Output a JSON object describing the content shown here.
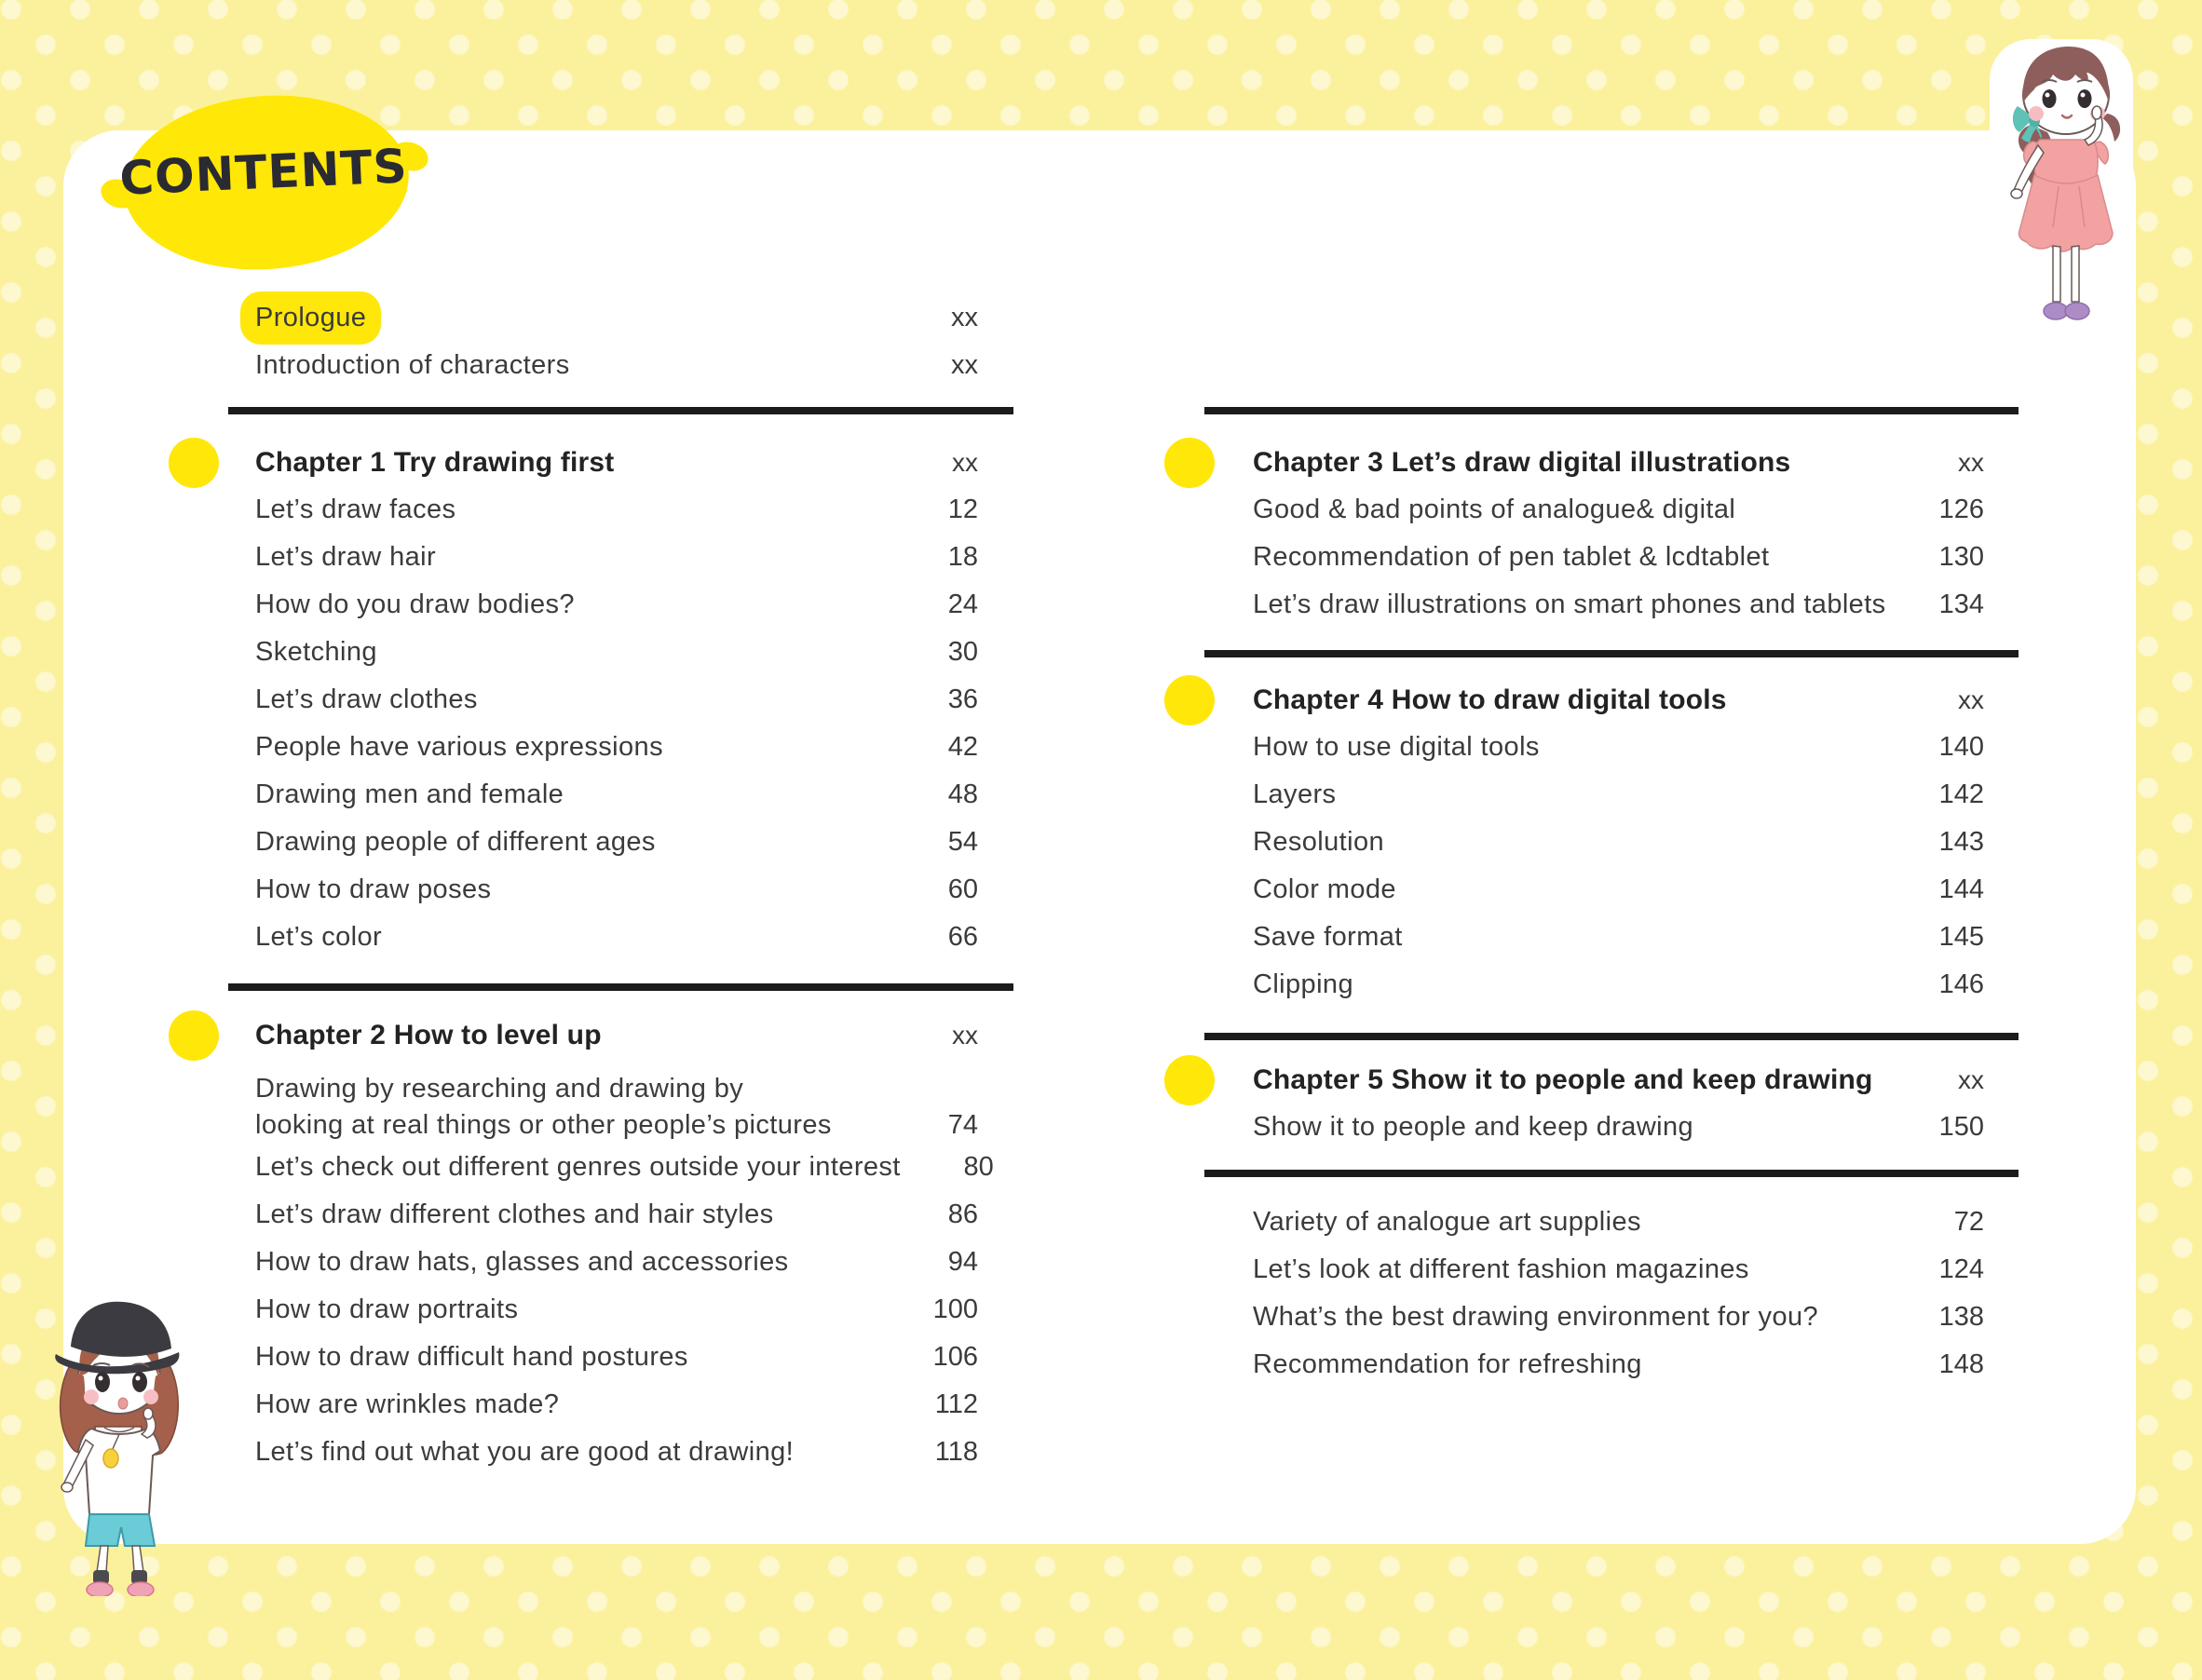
{
  "title": "CONTENTS",
  "colors": {
    "background_yellow": "#fbf19d",
    "dot_cream": "#fdf8d0",
    "accent_yellow": "#ffe70a",
    "text_dark": "#3b3b3b",
    "separator_dark": "#1b1b1b"
  },
  "front_matter": [
    {
      "label": "Prologue",
      "page": "xx",
      "highlight": true
    },
    {
      "label": "Introduction of characters",
      "page": "xx"
    }
  ],
  "left_column": {
    "sections": [
      {
        "heading": {
          "label": "Chapter 1 Try drawing first",
          "page": "xx"
        },
        "items": [
          {
            "label": "Let’s draw faces",
            "page": "12"
          },
          {
            "label": "Let’s draw hair",
            "page": "18"
          },
          {
            "label": "How do you draw bodies?",
            "page": "24"
          },
          {
            "label": "Sketching",
            "page": "30"
          },
          {
            "label": "Let’s draw clothes",
            "page": "36"
          },
          {
            "label": "People have various expressions",
            "page": "42"
          },
          {
            "label": "Drawing men and female",
            "page": "48"
          },
          {
            "label": "Drawing people of different ages",
            "page": "54"
          },
          {
            "label": "How to draw poses",
            "page": "60"
          },
          {
            "label": "Let’s color",
            "page": "66"
          }
        ]
      },
      {
        "heading": {
          "label": "Chapter 2 How to level up",
          "page": "xx"
        },
        "items": [
          {
            "label": "Drawing by researching and drawing by\nlooking at real things or other people’s pictures",
            "page": "74",
            "multiline": true
          },
          {
            "label": "Let’s check out different genres outside your interest",
            "page": "80"
          },
          {
            "label": "Let’s draw different clothes and hair styles",
            "page": "86"
          },
          {
            "label": "How to draw hats, glasses and accessories",
            "page": "94"
          },
          {
            "label": "How to draw portraits",
            "page": "100"
          },
          {
            "label": "How to draw difficult hand postures",
            "page": "106"
          },
          {
            "label": "How are wrinkles made?",
            "page": "112"
          },
          {
            "label": "Let’s find out what you are good at drawing!",
            "page": "118"
          }
        ]
      }
    ]
  },
  "right_column": {
    "sections": [
      {
        "heading": {
          "label": "Chapter 3 Let’s draw digital illustrations",
          "page": "xx"
        },
        "items": [
          {
            "label": "Good & bad points of analogue& digital",
            "page": "126"
          },
          {
            "label": "Recommendation of pen tablet & lcdtablet",
            "page": "130"
          },
          {
            "label": "Let’s draw illustrations on smart phones and tablets",
            "page": "134"
          }
        ]
      },
      {
        "heading": {
          "label": "Chapter 4 How to draw digital tools",
          "page": "xx"
        },
        "items": [
          {
            "label": "How to use digital tools",
            "page": "140"
          },
          {
            "label": "Layers",
            "page": "142"
          },
          {
            "label": "Resolution",
            "page": "143"
          },
          {
            "label": "Color mode",
            "page": "144"
          },
          {
            "label": "Save format",
            "page": "145"
          },
          {
            "label": "Clipping",
            "page": "146"
          }
        ]
      },
      {
        "heading": {
          "label": "Chapter 5 Show it to people and keep drawing",
          "page": "xx"
        },
        "items": [
          {
            "label": "Show it to people and keep drawing",
            "page": "150"
          }
        ]
      },
      {
        "items": [
          {
            "label": "Variety of analogue art supplies",
            "page": "72"
          },
          {
            "label": "Let’s look at different fashion magazines",
            "page": "124"
          },
          {
            "label": "What’s the best drawing environment for you?",
            "page": "138"
          },
          {
            "label": "Recommendation for refreshing",
            "page": "148"
          }
        ]
      }
    ]
  },
  "characters": {
    "top_right": "chibi girl in pink dress with teal hair bow",
    "bottom_left": "chibi girl with black cap, lemon tee and blue shorts"
  }
}
